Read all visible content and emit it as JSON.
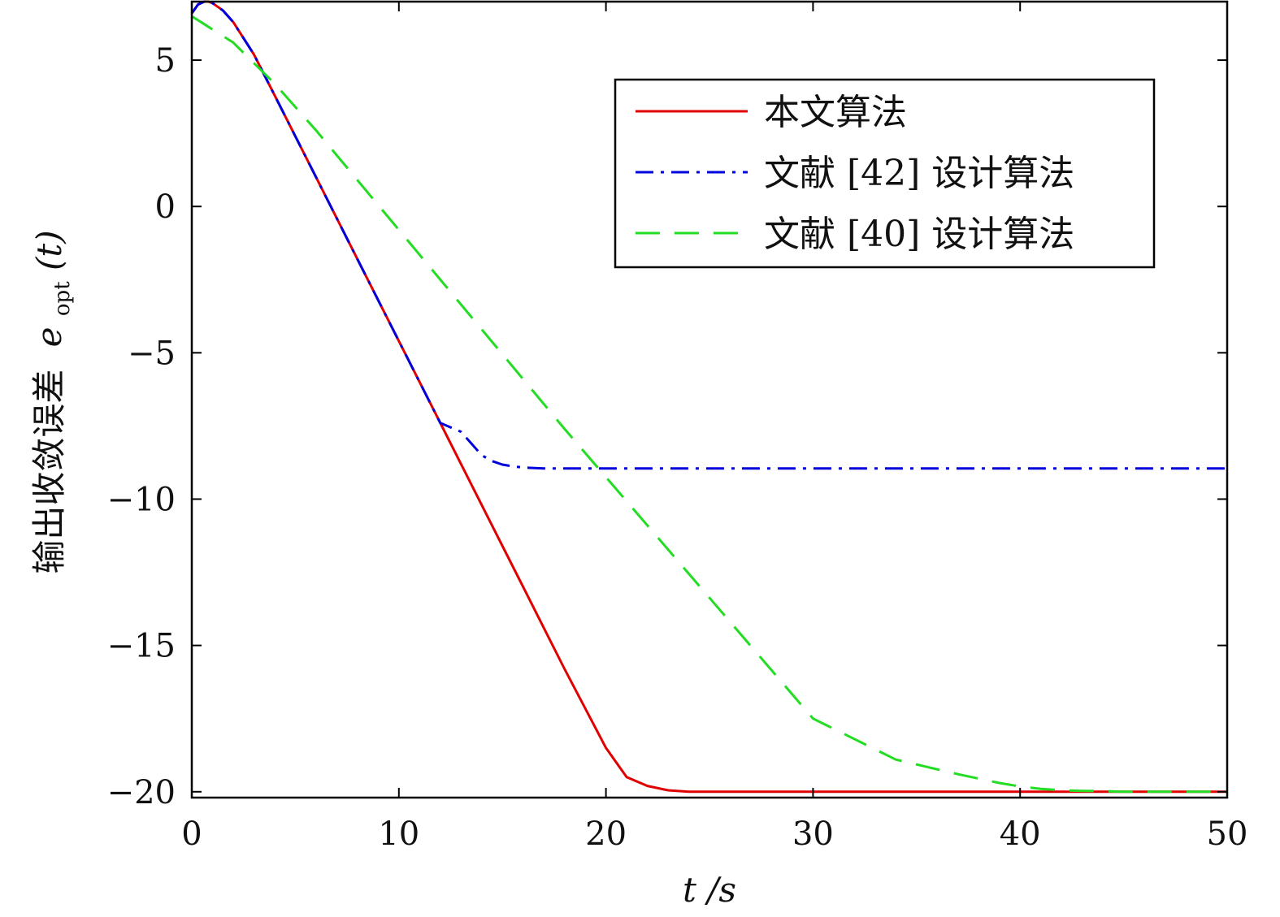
{
  "chart_data": {
    "type": "line",
    "xlabel": "t /s",
    "ylabel": {
      "prefix": "输出收敛误差",
      "symbol": "e",
      "subscript": "opt",
      "suffix": "(t)"
    },
    "xlim": [
      0,
      50
    ],
    "ylim": [
      -20.2,
      7
    ],
    "xticks": [
      0,
      10,
      20,
      30,
      40,
      50
    ],
    "xtick_labels": [
      "0",
      "10",
      "20",
      "30",
      "40",
      "50"
    ],
    "yticks": [
      5,
      0,
      -5,
      -10,
      -15,
      -20
    ],
    "ytick_labels": [
      "5",
      "0",
      "−5",
      "−10",
      "−15",
      "−20"
    ],
    "grid": false,
    "legend_position": "top-right",
    "series": [
      {
        "name": "本文算法",
        "color": "#e00000",
        "style": "solid",
        "x": [
          0,
          0.3,
          0.6,
          0.8,
          1.0,
          1.5,
          2,
          3,
          4,
          6,
          8,
          10,
          12,
          14,
          16,
          18,
          20,
          21,
          22,
          23,
          24,
          25,
          26,
          27,
          28,
          30,
          35,
          40,
          45,
          50
        ],
        "y": [
          6.6,
          6.9,
          7.0,
          7.0,
          6.95,
          6.7,
          6.3,
          5.2,
          3.8,
          1.0,
          -1.8,
          -4.6,
          -7.4,
          -10.2,
          -13.0,
          -15.8,
          -18.5,
          -19.5,
          -19.8,
          -19.95,
          -20.0,
          -20.0,
          -20.0,
          -20.0,
          -20.0,
          -20.0,
          -20.0,
          -20.0,
          -20.0,
          -20.0
        ]
      },
      {
        "name": "文献 [42] 设计算法",
        "color": "#0000dd",
        "style": "dashdot",
        "x": [
          0,
          0.3,
          0.6,
          0.8,
          1.0,
          1.5,
          2,
          3,
          4,
          6,
          8,
          10,
          12,
          13,
          13.5,
          14,
          14.5,
          15,
          15.5,
          16,
          17,
          18,
          20,
          25,
          30,
          40,
          50
        ],
        "y": [
          6.6,
          6.9,
          7.0,
          7.0,
          6.95,
          6.7,
          6.3,
          5.2,
          3.8,
          1.0,
          -1.8,
          -4.6,
          -7.4,
          -7.7,
          -8.1,
          -8.5,
          -8.7,
          -8.82,
          -8.88,
          -8.92,
          -8.95,
          -8.95,
          -8.95,
          -8.95,
          -8.95,
          -8.95,
          -8.95
        ]
      },
      {
        "name": "文献 [40] 设计算法",
        "color": "#22dd22",
        "style": "dashed",
        "x": [
          0,
          2,
          4,
          6,
          8,
          10,
          14,
          18,
          22,
          26,
          30,
          34,
          37,
          39,
          40,
          41,
          42,
          43,
          44,
          45,
          46,
          48,
          50
        ],
        "y": [
          6.5,
          5.6,
          4.2,
          2.6,
          0.9,
          -0.8,
          -4.2,
          -7.6,
          -10.9,
          -14.2,
          -17.5,
          -18.9,
          -19.4,
          -19.7,
          -19.82,
          -19.9,
          -19.95,
          -19.97,
          -19.98,
          -20.0,
          -20.0,
          -20.0,
          -20.0
        ]
      }
    ]
  }
}
